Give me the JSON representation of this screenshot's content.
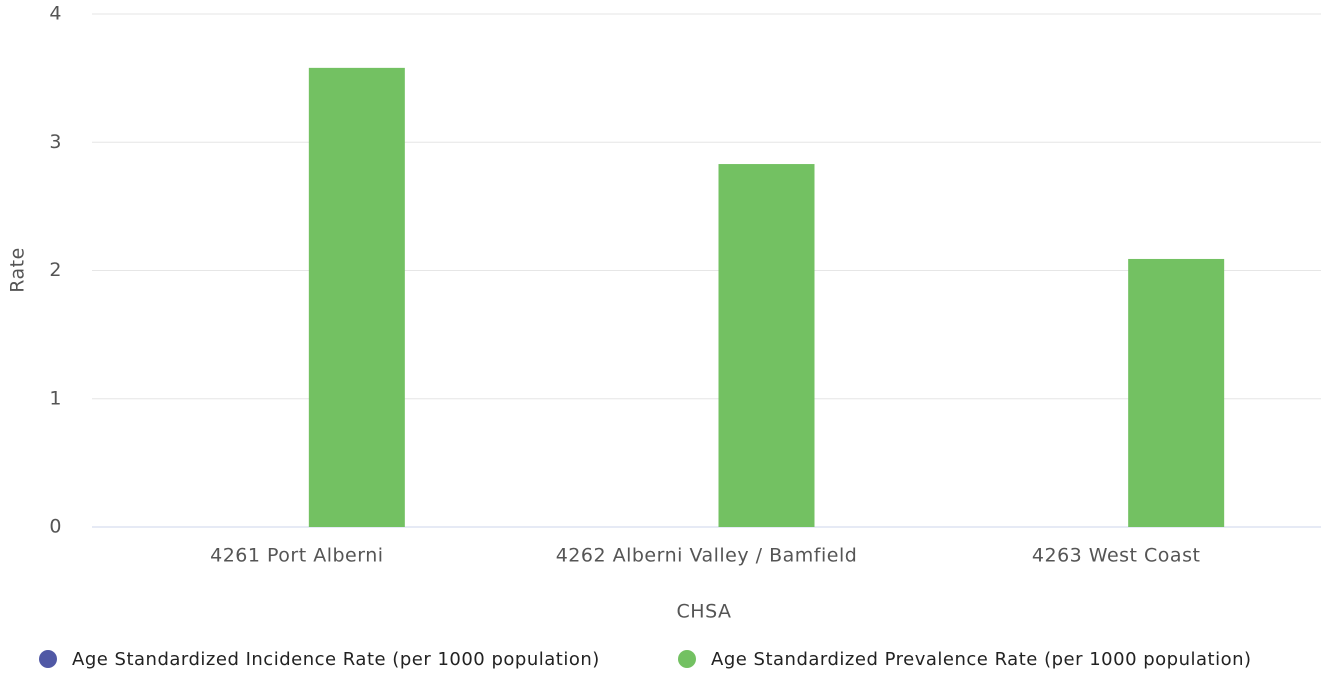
{
  "chart_data": {
    "type": "bar",
    "categories": [
      "4261 Port Alberni",
      "4262 Alberni Valley / Bamfield",
      "4263 West Coast"
    ],
    "series": [
      {
        "name": "Age Standardized Incidence Rate (per 1000 population)",
        "color": "#5058a5",
        "values": [
          null,
          null,
          null
        ]
      },
      {
        "name": "Age Standardized Prevalence Rate (per 1000 population)",
        "color": "#73c162",
        "values": [
          3.58,
          2.83,
          2.09
        ]
      }
    ],
    "xlabel": "CHSA",
    "ylabel": "Rate",
    "ylim": [
      0,
      4
    ],
    "yticks": [
      0,
      1,
      2,
      3,
      4
    ],
    "grid": true,
    "legend": "bottom"
  }
}
